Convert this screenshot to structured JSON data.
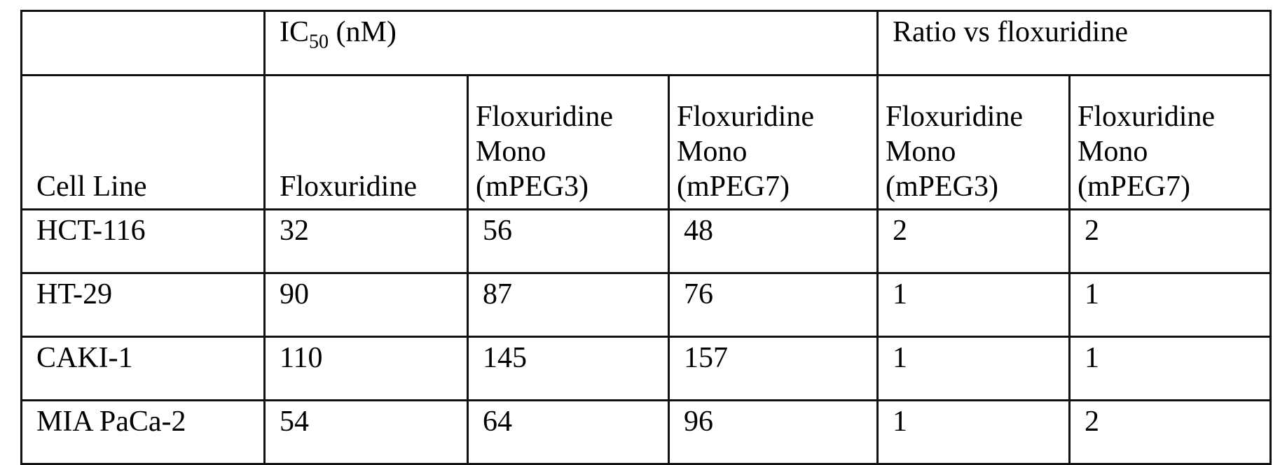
{
  "header": {
    "ic50_label": "IC",
    "ic50_sub": "50",
    "ic50_unit": " (nM)",
    "ratio_label": "Ratio vs floxuridine",
    "columns": [
      "Cell Line",
      "Floxuridine",
      [
        "Floxuridine",
        "Mono",
        "(mPEG3)"
      ],
      [
        "Floxuridine",
        "Mono",
        "(mPEG7)"
      ],
      [
        "Floxuridine",
        "Mono",
        "(mPEG3)"
      ],
      [
        "Floxuridine",
        "Mono",
        "(mPEG7)"
      ]
    ]
  },
  "rows": [
    [
      "HCT-116",
      "32",
      "56",
      "48",
      "2",
      "2"
    ],
    [
      "HT-29",
      "90",
      "87",
      "76",
      "1",
      "1"
    ],
    [
      "CAKI-1",
      "110",
      "145",
      "157",
      "1",
      "1"
    ],
    [
      "MIA PaCa-2",
      "54",
      "64",
      "96",
      "1",
      "2"
    ]
  ]
}
